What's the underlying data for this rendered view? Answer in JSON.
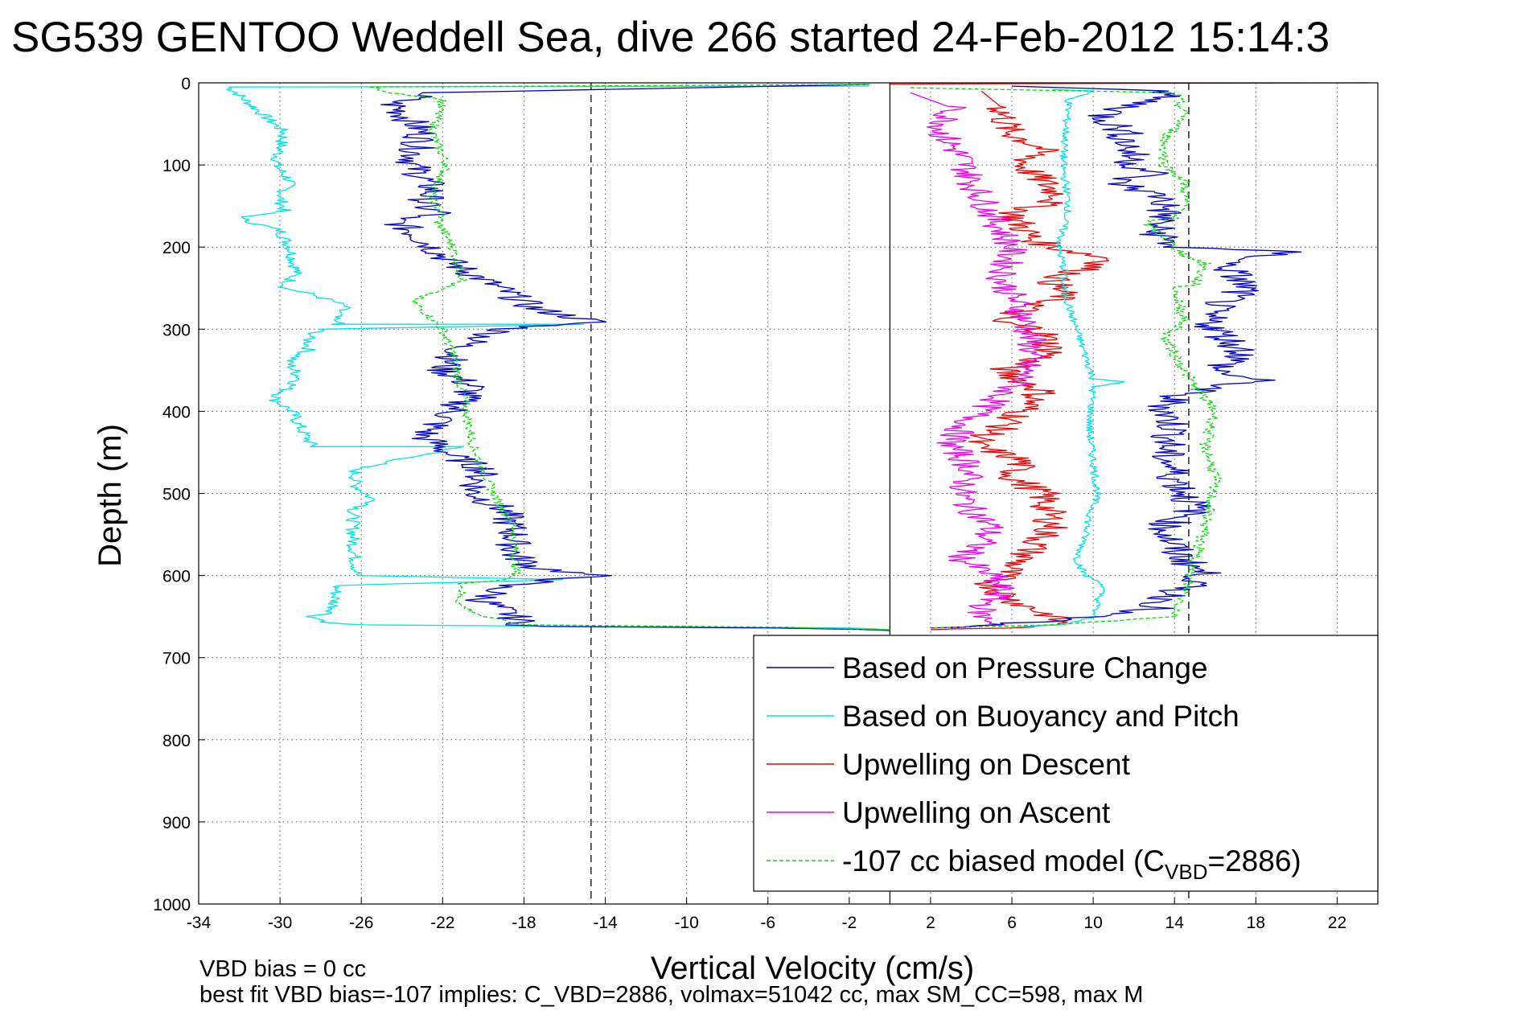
{
  "chart_data": {
    "type": "line",
    "title": "SG539 GENTOO Weddell Sea, dive 266 started 24-Feb-2012 15:14:3",
    "xlabel": "Vertical Velocity (cm/s)",
    "ylabel": "Depth (m)",
    "xlim": [
      -34,
      24
    ],
    "ylim": [
      0,
      1000
    ],
    "y_reversed": true,
    "grid": true,
    "x_ticks": [
      -34,
      -30,
      -26,
      -22,
      -18,
      -14,
      -10,
      -6,
      -2,
      2,
      6,
      10,
      14,
      18,
      22
    ],
    "y_ticks": [
      0,
      100,
      200,
      300,
      400,
      500,
      600,
      700,
      800,
      900,
      1000
    ],
    "reference_lines": {
      "zero_solid_x": 0,
      "dashed_x": [
        -14.7,
        14.7
      ]
    },
    "legend": {
      "placement": "lower-right",
      "entries": [
        {
          "label": "Based on Pressure Change",
          "color": "#0000cc",
          "dash": false
        },
        {
          "label": "Based on Buoyancy and Pitch",
          "color": "#00e5e5",
          "dash": false
        },
        {
          "label": "Upwelling on Descent",
          "color": "#ee0000",
          "dash": false
        },
        {
          "label": "Upwelling on Ascent",
          "color": "#ee00ee",
          "dash": false
        },
        {
          "label": "-107 cc biased model (C",
          "sub": "VBD",
          "suffix": "=2886)",
          "color": "#00dd00",
          "dash": true
        }
      ]
    },
    "series": [
      {
        "color": "#00e5e5",
        "dash": false,
        "noise": 0.35,
        "x": [
          -1,
          -32.5,
          -31.5,
          -29.8,
          -30.2,
          -29.5,
          -30,
          -29.8,
          -32,
          -30,
          -29.5,
          -29.2,
          -29.8,
          -28.8,
          -27.5,
          -26.8,
          -27.5,
          -26.8,
          -27.5,
          -15,
          -28,
          -28.6,
          -28.6,
          -29.6,
          -29,
          -30.3,
          -29.4,
          -29,
          -28.4,
          -21,
          -26.3,
          -26.3,
          -25.3,
          -26.4,
          -26.4,
          -26.2,
          -16,
          -27.2,
          -27.4,
          -28.4,
          -27.5,
          -26,
          -15,
          -2,
          0
        ],
        "y": [
          4,
          5,
          25,
          60,
          100,
          120,
          140,
          155,
          165,
          180,
          200,
          230,
          250,
          255,
          265,
          272,
          290,
          292,
          294,
          294,
          300,
          310,
          325,
          340,
          360,
          385,
          400,
          420,
          443,
          443,
          470,
          490,
          510,
          520,
          560,
          600,
          605,
          612,
          645,
          650,
          658,
          660,
          662,
          664,
          666
        ]
      },
      {
        "color": "#0000cc",
        "dash": false,
        "noise": 0.9,
        "x": [
          -1,
          -22.5,
          -24.5,
          -23,
          -23.5,
          -22.5,
          -23,
          -22,
          -24.5,
          -23,
          -21.5,
          -20,
          -18.5,
          -17.5,
          -14.5,
          -19,
          -21,
          -22,
          -20.5,
          -21.5,
          -23,
          -22,
          -21.5,
          -20,
          -20.5,
          -19,
          -18.5,
          -18.5,
          -17.5,
          -14.5,
          -19,
          -20,
          -18.5,
          -18,
          -17.5,
          -5,
          0
        ],
        "y": [
          2,
          12,
          25,
          60,
          100,
          130,
          150,
          160,
          165,
          190,
          220,
          240,
          260,
          275,
          291,
          300,
          320,
          350,
          370,
          400,
          430,
          445,
          455,
          470,
          500,
          520,
          550,
          575,
          590,
          600,
          612,
          630,
          650,
          660,
          662,
          664,
          667
        ]
      },
      {
        "color": "#00dd00",
        "dash": true,
        "noise": 0.25,
        "x": [
          -1,
          -25.5,
          -24.5,
          -22,
          -22.5,
          -21.8,
          -22.6,
          -22,
          -22.2,
          -21.5,
          -21,
          -22.5,
          -23.5,
          -22,
          -21.5,
          -21,
          -20.5,
          -19.5,
          -18.5,
          -18.4,
          -19,
          -21,
          -21.2,
          -20,
          -18,
          -5,
          0
        ],
        "y": [
          2,
          5,
          12,
          20,
          60,
          100,
          140,
          160,
          170,
          200,
          240,
          255,
          265,
          300,
          330,
          380,
          443,
          500,
          540,
          600,
          605,
          610,
          635,
          650,
          660,
          663,
          666
        ]
      },
      {
        "color": "#ee0000",
        "dash": false,
        "noise": 0.9,
        "x": [
          4.5,
          5.5,
          5.8,
          7.5,
          6.5,
          8.5,
          6,
          7,
          8,
          11,
          8,
          8.5,
          5,
          7.5,
          8,
          5.5,
          7.5,
          6.5,
          5.5,
          4,
          6.5,
          6,
          7.5,
          8,
          6.5,
          5.5,
          5,
          6,
          8,
          8.5,
          5.5,
          2
        ],
        "y": [
          10,
          30,
          60,
          80,
          100,
          140,
          160,
          190,
          200,
          215,
          240,
          260,
          290,
          300,
          330,
          350,
          375,
          400,
          420,
          440,
          460,
          480,
          500,
          540,
          580,
          600,
          610,
          630,
          650,
          660,
          664,
          666
        ]
      },
      {
        "color": "#ee00ee",
        "dash": false,
        "noise": 0.8,
        "x": [
          1,
          3,
          2.5,
          3.5,
          4,
          5,
          6,
          5.5,
          6.5,
          7,
          6.5,
          5.5,
          4.5,
          3.5,
          3,
          4,
          3.5,
          4,
          5,
          4.5,
          3.5,
          5,
          5.5,
          4.5,
          4.5,
          5.5,
          3
        ],
        "y": [
          12,
          30,
          60,
          90,
          120,
          160,
          200,
          240,
          280,
          320,
          360,
          380,
          400,
          420,
          440,
          470,
          500,
          520,
          540,
          560,
          580,
          600,
          620,
          640,
          650,
          660,
          664
        ]
      },
      {
        "color": "#00e5e5",
        "dash": false,
        "noise": 0.2,
        "x": [
          8,
          10,
          8.8,
          8.5,
          8.8,
          8.3,
          8.6,
          8.5,
          8.9,
          10,
          11.5,
          10,
          9.8,
          10.2,
          9.8,
          9.5,
          9.2,
          9.6,
          10.5,
          10,
          8.5,
          6
        ],
        "y": [
          8,
          10,
          20,
          100,
          150,
          200,
          230,
          245,
          280,
          360,
          364,
          370,
          420,
          500,
          530,
          560,
          580,
          600,
          610,
          650,
          660,
          663
        ]
      },
      {
        "color": "#0000cc",
        "dash": false,
        "noise": 1.0,
        "x": [
          6,
          14,
          10.5,
          11.5,
          12,
          13,
          11,
          13.5,
          13.5,
          13,
          14,
          19.5,
          16.5,
          17.5,
          15.5,
          16,
          17.5,
          16,
          18,
          14,
          13.5,
          14,
          13.5,
          14,
          14.5,
          15,
          13.5,
          14,
          15.5,
          14,
          13,
          8,
          2
        ],
        "y": [
          4,
          10,
          40,
          60,
          100,
          110,
          120,
          140,
          160,
          180,
          200,
          206,
          220,
          250,
          280,
          300,
          330,
          350,
          362,
          380,
          400,
          420,
          450,
          480,
          500,
          520,
          540,
          570,
          600,
          620,
          640,
          655,
          664
        ]
      },
      {
        "color": "#00dd00",
        "dash": true,
        "noise": 0.3,
        "x": [
          1,
          14,
          14.5,
          13.5,
          13.5,
          14.5,
          14.5,
          14,
          12.5,
          14.5,
          15.5,
          15,
          14,
          14.5,
          13.5,
          15,
          16,
          15.5,
          16,
          15.5,
          15,
          14.5,
          14,
          8,
          2
        ],
        "y": [
          6,
          12,
          40,
          70,
          100,
          120,
          150,
          165,
          168,
          210,
          220,
          245,
          250,
          290,
          310,
          370,
          400,
          440,
          480,
          540,
          580,
          620,
          650,
          660,
          664
        ]
      },
      {
        "color": "#ee0000",
        "dash": false,
        "noise": 0,
        "x": [
          23.5,
          10,
          0
        ],
        "y": [
          0,
          0.7,
          1.5
        ]
      }
    ]
  },
  "footer": {
    "line1": "VBD bias = 0 cc",
    "line2": "best fit VBD bias=-107 implies: C_VBD=2886, volmax=51042 cc, max SM_CC=598, max M"
  }
}
